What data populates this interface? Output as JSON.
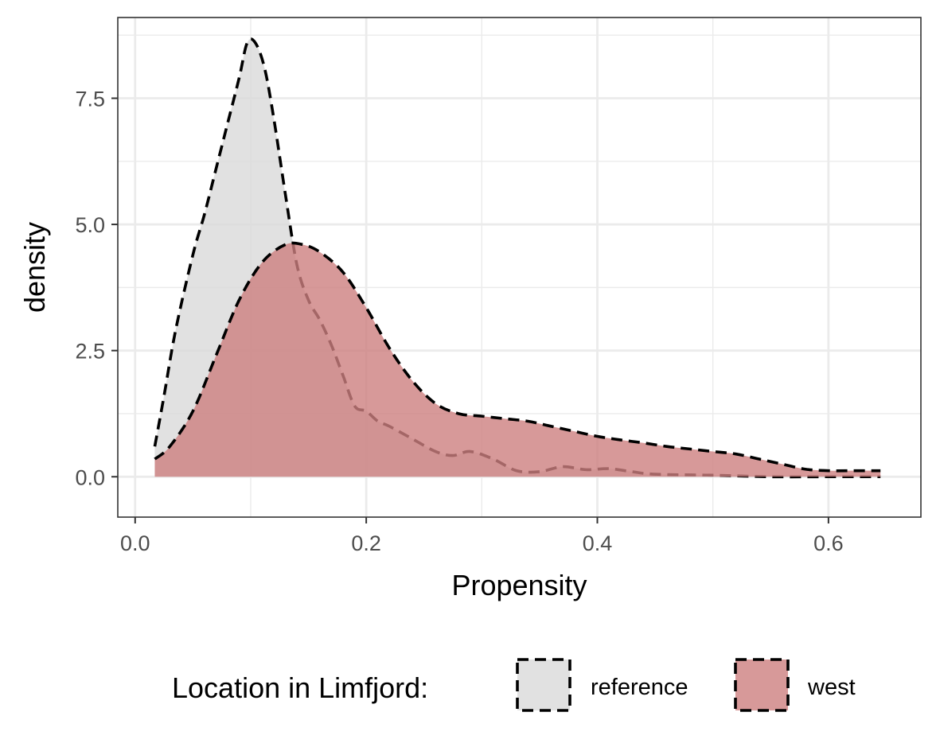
{
  "chart_data": {
    "type": "area",
    "subtype": "density",
    "title": "",
    "xlabel": "Propensity",
    "ylabel": "density",
    "xlim": [
      -0.015,
      0.68
    ],
    "ylim": [
      -0.8,
      9.1
    ],
    "x_ticks": [
      0.0,
      0.2,
      0.4,
      0.6
    ],
    "x_tick_labels": [
      "0.0",
      "0.2",
      "0.4",
      "0.6"
    ],
    "y_ticks": [
      0.0,
      2.5,
      5.0,
      7.5
    ],
    "y_tick_labels": [
      "0.0",
      "2.5",
      "5.0",
      "7.5"
    ],
    "grid": true,
    "legend": {
      "title": "Location in Limfjord:",
      "position": "bottom"
    },
    "series": [
      {
        "name": "reference",
        "color": "#d9d9d9",
        "points": [
          [
            0.017,
            0.6
          ],
          [
            0.025,
            1.6
          ],
          [
            0.035,
            2.9
          ],
          [
            0.05,
            4.4
          ],
          [
            0.06,
            5.2
          ],
          [
            0.07,
            6.1
          ],
          [
            0.08,
            7.0
          ],
          [
            0.09,
            7.9
          ],
          [
            0.097,
            8.6
          ],
          [
            0.104,
            8.6
          ],
          [
            0.112,
            8.1
          ],
          [
            0.12,
            7.1
          ],
          [
            0.13,
            5.6
          ],
          [
            0.14,
            4.2
          ],
          [
            0.15,
            3.5
          ],
          [
            0.16,
            3.1
          ],
          [
            0.17,
            2.6
          ],
          [
            0.18,
            2.0
          ],
          [
            0.19,
            1.4
          ],
          [
            0.2,
            1.3
          ],
          [
            0.21,
            1.1
          ],
          [
            0.22,
            1.0
          ],
          [
            0.24,
            0.75
          ],
          [
            0.26,
            0.5
          ],
          [
            0.275,
            0.42
          ],
          [
            0.29,
            0.5
          ],
          [
            0.31,
            0.35
          ],
          [
            0.33,
            0.12
          ],
          [
            0.35,
            0.1
          ],
          [
            0.37,
            0.2
          ],
          [
            0.39,
            0.14
          ],
          [
            0.41,
            0.16
          ],
          [
            0.43,
            0.1
          ],
          [
            0.45,
            0.05
          ],
          [
            0.5,
            0.03
          ],
          [
            0.55,
            0.0
          ],
          [
            0.6,
            0.0
          ],
          [
            0.645,
            0.0
          ]
        ]
      },
      {
        "name": "west",
        "color": "#cd7f80",
        "points": [
          [
            0.017,
            0.35
          ],
          [
            0.03,
            0.6
          ],
          [
            0.05,
            1.3
          ],
          [
            0.07,
            2.4
          ],
          [
            0.09,
            3.5
          ],
          [
            0.11,
            4.25
          ],
          [
            0.13,
            4.6
          ],
          [
            0.145,
            4.6
          ],
          [
            0.16,
            4.45
          ],
          [
            0.18,
            4.05
          ],
          [
            0.2,
            3.35
          ],
          [
            0.22,
            2.55
          ],
          [
            0.24,
            1.9
          ],
          [
            0.26,
            1.45
          ],
          [
            0.28,
            1.25
          ],
          [
            0.3,
            1.2
          ],
          [
            0.32,
            1.15
          ],
          [
            0.34,
            1.1
          ],
          [
            0.36,
            1.0
          ],
          [
            0.38,
            0.9
          ],
          [
            0.4,
            0.8
          ],
          [
            0.42,
            0.73
          ],
          [
            0.44,
            0.67
          ],
          [
            0.46,
            0.6
          ],
          [
            0.48,
            0.55
          ],
          [
            0.5,
            0.5
          ],
          [
            0.52,
            0.45
          ],
          [
            0.54,
            0.35
          ],
          [
            0.56,
            0.25
          ],
          [
            0.58,
            0.15
          ],
          [
            0.6,
            0.12
          ],
          [
            0.62,
            0.12
          ],
          [
            0.645,
            0.12
          ]
        ]
      }
    ]
  }
}
